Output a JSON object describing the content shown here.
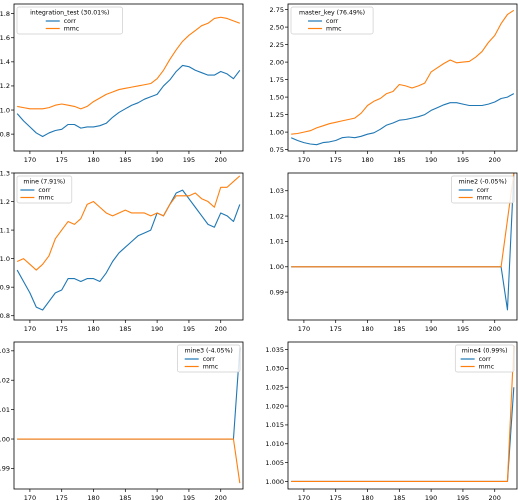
{
  "colors": {
    "corr": "#1f77b4",
    "mmc": "#ff7f0e"
  },
  "chart_data": [
    {
      "type": "line",
      "legend_title": "integration_test (30.01%)",
      "legend_placement": "top-left",
      "xlim": [
        167.5,
        203.5
      ],
      "ylim": [
        0.66,
        1.88
      ],
      "xticks": [
        170,
        175,
        180,
        185,
        190,
        195,
        200
      ],
      "yticks": [
        0.8,
        1.0,
        1.2,
        1.4,
        1.6,
        1.8
      ],
      "ytick_labels": [
        "0.8",
        "1.0",
        "1.2",
        "1.4",
        "1.6",
        "1.8"
      ],
      "series": [
        {
          "name": "corr",
          "color": "#1f77b4",
          "x": [
            168,
            169,
            170,
            171,
            172,
            173,
            174,
            175,
            176,
            177,
            178,
            179,
            180,
            181,
            182,
            183,
            184,
            185,
            186,
            187,
            188,
            189,
            190,
            191,
            192,
            193,
            194,
            195,
            196,
            197,
            198,
            199,
            200,
            201,
            202,
            203
          ],
          "y": [
            0.97,
            0.91,
            0.86,
            0.81,
            0.78,
            0.81,
            0.83,
            0.84,
            0.88,
            0.88,
            0.85,
            0.86,
            0.86,
            0.87,
            0.89,
            0.94,
            0.98,
            1.01,
            1.04,
            1.06,
            1.09,
            1.11,
            1.13,
            1.2,
            1.25,
            1.32,
            1.37,
            1.36,
            1.33,
            1.31,
            1.29,
            1.29,
            1.32,
            1.3,
            1.26,
            1.33
          ]
        },
        {
          "name": "mmc",
          "color": "#ff7f0e",
          "x": [
            168,
            169,
            170,
            171,
            172,
            173,
            174,
            175,
            176,
            177,
            178,
            179,
            180,
            181,
            182,
            183,
            184,
            185,
            186,
            187,
            188,
            189,
            190,
            191,
            192,
            193,
            194,
            195,
            196,
            197,
            198,
            199,
            200,
            201,
            202,
            203
          ],
          "y": [
            1.03,
            1.02,
            1.01,
            1.01,
            1.01,
            1.02,
            1.04,
            1.05,
            1.04,
            1.03,
            1.01,
            1.03,
            1.07,
            1.1,
            1.13,
            1.15,
            1.17,
            1.18,
            1.19,
            1.2,
            1.21,
            1.22,
            1.26,
            1.33,
            1.42,
            1.5,
            1.57,
            1.62,
            1.66,
            1.7,
            1.72,
            1.76,
            1.77,
            1.76,
            1.74,
            1.72
          ]
        }
      ]
    },
    {
      "type": "line",
      "legend_title": "master_key (76.49%)",
      "legend_placement": "top-left",
      "xlim": [
        167.5,
        203.5
      ],
      "ylim": [
        0.73,
        2.83
      ],
      "xticks": [
        170,
        175,
        180,
        185,
        190,
        195,
        200
      ],
      "yticks": [
        0.75,
        1.0,
        1.25,
        1.5,
        1.75,
        2.0,
        2.25,
        2.5,
        2.75
      ],
      "ytick_labels": [
        "0.75",
        "1.00",
        "1.25",
        "1.50",
        "1.75",
        "2.00",
        "2.25",
        "2.50",
        "2.75"
      ],
      "series": [
        {
          "name": "corr",
          "color": "#1f77b4",
          "x": [
            168,
            169,
            170,
            171,
            172,
            173,
            174,
            175,
            176,
            177,
            178,
            179,
            180,
            181,
            182,
            183,
            184,
            185,
            186,
            187,
            188,
            189,
            190,
            191,
            192,
            193,
            194,
            195,
            196,
            197,
            198,
            199,
            200,
            201,
            202,
            203
          ],
          "y": [
            0.92,
            0.88,
            0.85,
            0.83,
            0.82,
            0.85,
            0.86,
            0.88,
            0.92,
            0.93,
            0.92,
            0.94,
            0.97,
            0.99,
            1.04,
            1.1,
            1.13,
            1.17,
            1.18,
            1.2,
            1.22,
            1.25,
            1.31,
            1.35,
            1.39,
            1.42,
            1.42,
            1.4,
            1.38,
            1.38,
            1.38,
            1.4,
            1.43,
            1.48,
            1.5,
            1.55
          ]
        },
        {
          "name": "mmc",
          "color": "#ff7f0e",
          "x": [
            168,
            169,
            170,
            171,
            172,
            173,
            174,
            175,
            176,
            177,
            178,
            179,
            180,
            181,
            182,
            183,
            184,
            185,
            186,
            187,
            188,
            189,
            190,
            191,
            192,
            193,
            194,
            195,
            196,
            197,
            198,
            199,
            200,
            201,
            202,
            203
          ],
          "y": [
            0.97,
            0.98,
            1.0,
            1.02,
            1.06,
            1.09,
            1.12,
            1.14,
            1.16,
            1.18,
            1.2,
            1.27,
            1.38,
            1.44,
            1.48,
            1.55,
            1.58,
            1.68,
            1.66,
            1.63,
            1.66,
            1.7,
            1.86,
            1.92,
            1.98,
            2.03,
            1.99,
            2.0,
            2.01,
            2.07,
            2.15,
            2.28,
            2.38,
            2.55,
            2.68,
            2.74
          ]
        }
      ]
    },
    {
      "type": "line",
      "legend_title": "mine (7.91%)",
      "legend_placement": "top-left",
      "xlim": [
        167.5,
        203.5
      ],
      "ylim": [
        0.785,
        1.3
      ],
      "xticks": [
        170,
        175,
        180,
        185,
        190,
        195,
        200
      ],
      "yticks": [
        0.8,
        0.9,
        1.0,
        1.1,
        1.2,
        1.3
      ],
      "ytick_labels": [
        "0.8",
        "0.9",
        "1.0",
        "1.1",
        "1.2",
        "1.3"
      ],
      "series": [
        {
          "name": "corr",
          "color": "#1f77b4",
          "x": [
            168,
            169,
            170,
            171,
            172,
            173,
            174,
            175,
            176,
            177,
            178,
            179,
            180,
            181,
            182,
            183,
            184,
            185,
            186,
            187,
            188,
            189,
            190,
            191,
            192,
            193,
            194,
            195,
            196,
            197,
            198,
            199,
            200,
            201,
            202,
            203
          ],
          "y": [
            0.96,
            0.92,
            0.88,
            0.83,
            0.82,
            0.85,
            0.88,
            0.89,
            0.93,
            0.93,
            0.92,
            0.93,
            0.93,
            0.92,
            0.95,
            0.99,
            1.02,
            1.04,
            1.06,
            1.08,
            1.09,
            1.1,
            1.16,
            1.15,
            1.19,
            1.23,
            1.24,
            1.21,
            1.18,
            1.15,
            1.12,
            1.11,
            1.16,
            1.15,
            1.13,
            1.19
          ]
        },
        {
          "name": "mmc",
          "color": "#ff7f0e",
          "x": [
            168,
            169,
            170,
            171,
            172,
            173,
            174,
            175,
            176,
            177,
            178,
            179,
            180,
            181,
            182,
            183,
            184,
            185,
            186,
            187,
            188,
            189,
            190,
            191,
            192,
            193,
            194,
            195,
            196,
            197,
            198,
            199,
            200,
            201,
            202,
            203
          ],
          "y": [
            0.99,
            1.0,
            0.98,
            0.96,
            0.98,
            1.01,
            1.07,
            1.1,
            1.13,
            1.12,
            1.14,
            1.19,
            1.2,
            1.18,
            1.16,
            1.15,
            1.16,
            1.17,
            1.16,
            1.16,
            1.16,
            1.15,
            1.16,
            1.15,
            1.19,
            1.22,
            1.22,
            1.22,
            1.23,
            1.21,
            1.2,
            1.18,
            1.25,
            1.25,
            1.27,
            1.29
          ]
        }
      ]
    },
    {
      "type": "line",
      "legend_title": "mine2 (-0.05%)",
      "legend_placement": "top-right",
      "xlim": [
        167.5,
        203.5
      ],
      "ylim": [
        0.979,
        1.037
      ],
      "xticks": [
        170,
        175,
        180,
        185,
        190,
        195,
        200
      ],
      "yticks": [
        0.99,
        1.0,
        1.01,
        1.02,
        1.03
      ],
      "ytick_labels": [
        "0.99",
        "1.00",
        "1.01",
        "1.02",
        "1.03"
      ],
      "series": [
        {
          "name": "corr",
          "color": "#1f77b4",
          "x": [
            168,
            201,
            202,
            203
          ],
          "y": [
            1.0,
            1.0,
            0.983,
            1.037
          ]
        },
        {
          "name": "mmc",
          "color": "#ff7f0e",
          "x": [
            168,
            201,
            203
          ],
          "y": [
            1.0,
            1.0,
            1.037
          ]
        }
      ]
    },
    {
      "type": "line",
      "legend_title": "mine3 (-4.05%)",
      "legend_placement": "top-right",
      "xlim": [
        167.5,
        203.5
      ],
      "ylim": [
        0.983,
        1.033
      ],
      "xticks": [
        170,
        175,
        180,
        185,
        190,
        195,
        200
      ],
      "yticks": [
        0.99,
        1.0,
        1.01,
        1.02,
        1.03
      ],
      "ytick_labels": [
        "0.99",
        "1.00",
        "1.01",
        "1.02",
        "1.03"
      ],
      "series": [
        {
          "name": "corr",
          "color": "#1f77b4",
          "x": [
            168,
            202,
            203
          ],
          "y": [
            1.0,
            1.0,
            1.031
          ]
        },
        {
          "name": "mmc",
          "color": "#ff7f0e",
          "x": [
            168,
            202,
            203
          ],
          "y": [
            1.0,
            1.0,
            0.985
          ]
        }
      ]
    },
    {
      "type": "line",
      "legend_title": "mine4 (0.99%)",
      "legend_placement": "top-right",
      "xlim": [
        167.5,
        203.5
      ],
      "ylim": [
        0.998,
        1.037
      ],
      "xticks": [
        170,
        175,
        180,
        185,
        190,
        195,
        200
      ],
      "yticks": [
        1.0,
        1.005,
        1.01,
        1.015,
        1.02,
        1.025,
        1.03,
        1.035
      ],
      "ytick_labels": [
        "1.000",
        "1.005",
        "1.010",
        "1.015",
        "1.020",
        "1.025",
        "1.030",
        "1.035"
      ],
      "series": [
        {
          "name": "corr",
          "color": "#1f77b4",
          "x": [
            168,
            202,
            203
          ],
          "y": [
            1.0,
            1.0,
            1.025
          ]
        },
        {
          "name": "mmc",
          "color": "#ff7f0e",
          "x": [
            168,
            202,
            203
          ],
          "y": [
            1.0,
            1.0,
            1.036
          ]
        }
      ]
    }
  ]
}
